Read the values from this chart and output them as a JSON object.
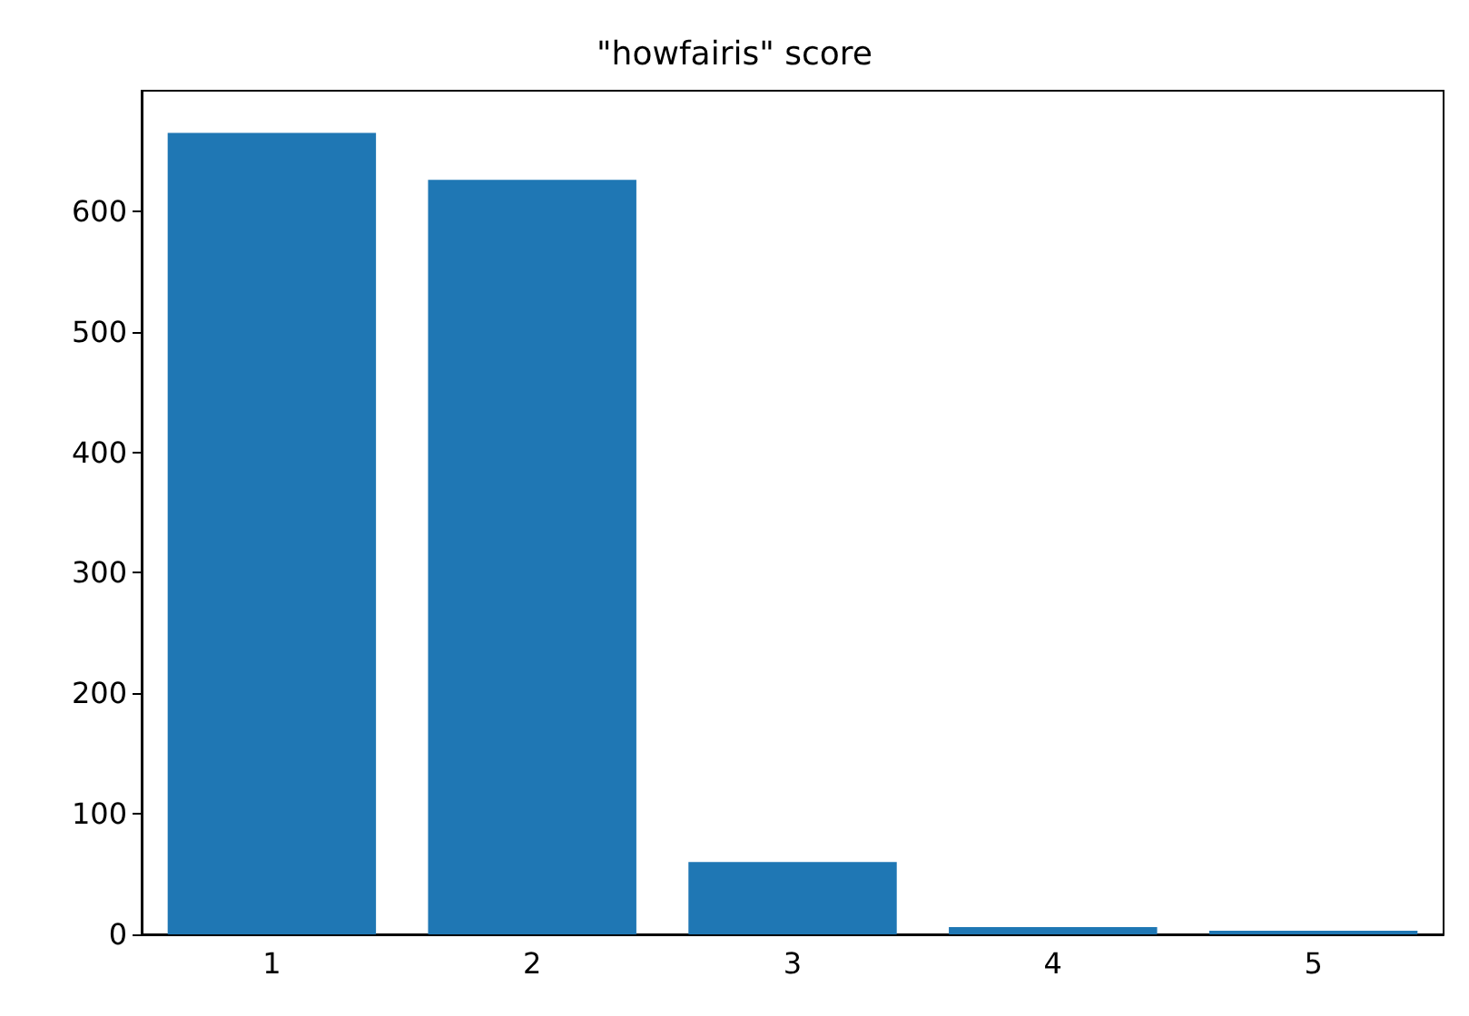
{
  "chart_data": {
    "type": "bar",
    "title": "\"howfairis\" score",
    "categories": [
      "1",
      "2",
      "3",
      "4",
      "5"
    ],
    "values": [
      665,
      626,
      60,
      6,
      3
    ],
    "color": "#1f77b4",
    "ylim": [
      0,
      700
    ],
    "yticks": [
      0,
      100,
      200,
      300,
      400,
      500,
      600
    ],
    "grid": false
  }
}
